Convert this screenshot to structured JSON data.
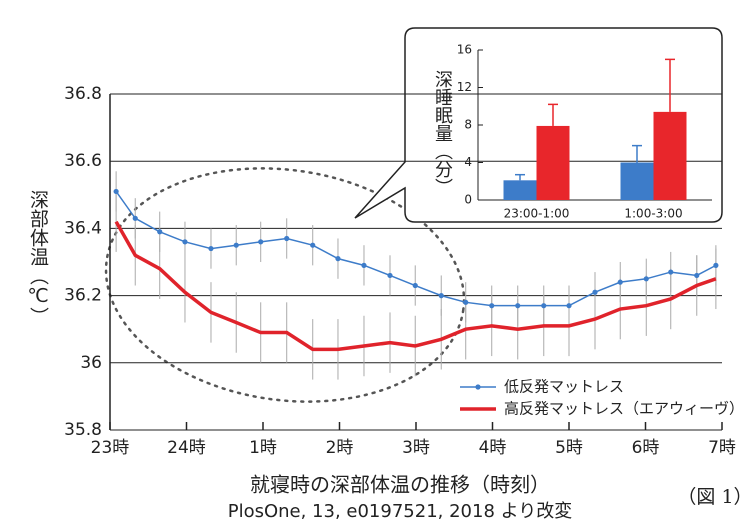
{
  "chart_data": [
    {
      "type": "line",
      "xlabel": "就寝時の深部体温の推移（時刻）",
      "source": "PlosOne, 13, e0197521, 2018 より改変",
      "figure_label": "（図 1）",
      "ylabel": "深部体温（℃）",
      "xlim": [
        0,
        8
      ],
      "xticks": [
        {
          "value": 0,
          "label": "23時"
        },
        {
          "value": 1,
          "label": "24時"
        },
        {
          "value": 2,
          "label": "1時"
        },
        {
          "value": 3,
          "label": "2時"
        },
        {
          "value": 4,
          "label": "3時"
        },
        {
          "value": 5,
          "label": "4時"
        },
        {
          "value": 6,
          "label": "5時"
        },
        {
          "value": 7,
          "label": "6時"
        },
        {
          "value": 8,
          "label": "7時"
        }
      ],
      "ylim": [
        35.8,
        36.8
      ],
      "yticks": [
        35.8,
        36,
        36.2,
        36.4,
        36.6,
        36.8
      ],
      "grid": true,
      "legend": "lower right",
      "error_color": "#aaaaaa",
      "x": [
        0.08,
        0.33,
        0.65,
        0.98,
        1.32,
        1.65,
        1.97,
        2.31,
        2.65,
        2.98,
        3.32,
        3.66,
        3.99,
        4.33,
        4.65,
        4.99,
        5.33,
        5.67,
        6.0,
        6.34,
        6.67,
        7.01,
        7.33,
        7.67,
        7.92
      ],
      "series": [
        {
          "name": "低反発マットレス",
          "color": "#3d7cc9",
          "values": [
            36.51,
            36.43,
            36.39,
            36.36,
            36.34,
            36.35,
            36.36,
            36.37,
            36.35,
            36.31,
            36.29,
            36.26,
            36.23,
            36.2,
            36.18,
            36.17,
            36.17,
            36.17,
            36.17,
            36.21,
            36.24,
            36.25,
            36.27,
            36.26,
            36.29
          ],
          "errors": [
            0.06,
            0.06,
            0.06,
            0.06,
            0.06,
            0.06,
            0.06,
            0.06,
            0.06,
            0.06,
            0.06,
            0.06,
            0.06,
            0.06,
            0.06,
            0.06,
            0.06,
            0.06,
            0.06,
            0.06,
            0.06,
            0.06,
            0.06,
            0.06,
            0.06
          ]
        },
        {
          "name": "高反発マットレス（エアウィーヴ）",
          "color": "#e0232b",
          "values": [
            36.42,
            36.32,
            36.28,
            36.21,
            36.15,
            36.12,
            36.09,
            36.09,
            36.04,
            36.04,
            36.05,
            36.06,
            36.05,
            36.07,
            36.1,
            36.11,
            36.1,
            36.11,
            36.11,
            36.13,
            36.16,
            36.17,
            36.19,
            36.23,
            36.25
          ],
          "errors": [
            0.09,
            0.09,
            0.09,
            0.09,
            0.09,
            0.09,
            0.09,
            0.09,
            0.09,
            0.09,
            0.09,
            0.09,
            0.09,
            0.09,
            0.09,
            0.09,
            0.09,
            0.09,
            0.09,
            0.09,
            0.09,
            0.09,
            0.09,
            0.09,
            0.09
          ]
        }
      ]
    },
    {
      "type": "bar",
      "ylabel": "深睡眠量（分）",
      "categories": [
        "23:00-1:00",
        "1:00-3:00"
      ],
      "ylim": [
        0,
        16
      ],
      "yticks": [
        0,
        4,
        8,
        12,
        16
      ],
      "series": [
        {
          "color": "#3d7cc9",
          "values": [
            2.1,
            4.0
          ],
          "errors": [
            0.6,
            1.8
          ]
        },
        {
          "color": "#e8262b",
          "values": [
            7.9,
            9.4
          ],
          "errors": [
            2.3,
            5.6
          ]
        }
      ]
    }
  ]
}
